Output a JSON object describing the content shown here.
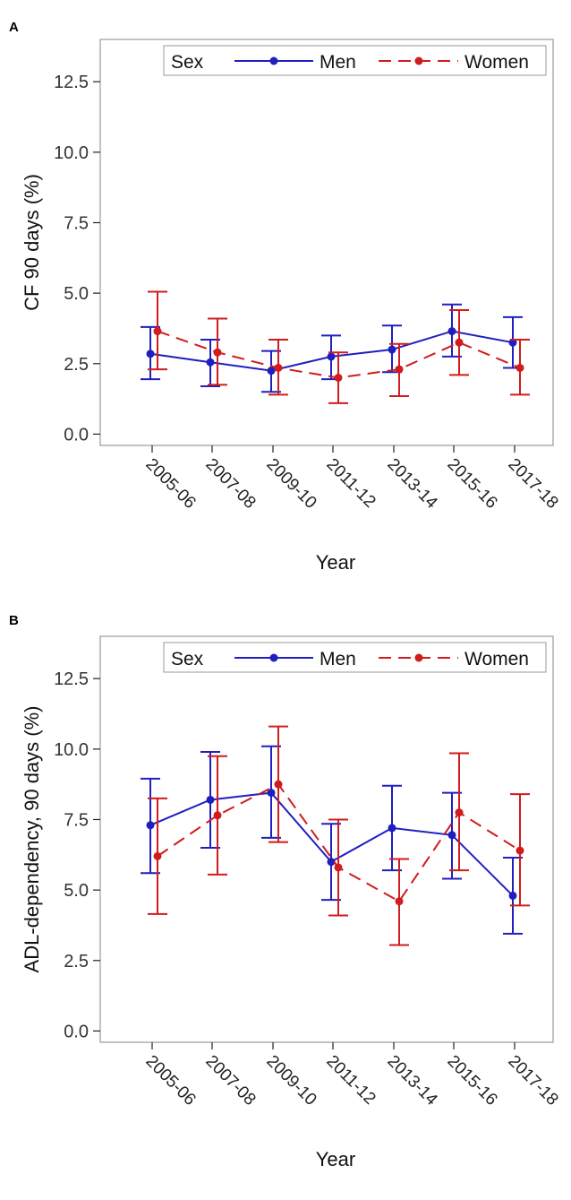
{
  "colors": {
    "men": "#1f1fbf",
    "women": "#d01c1c",
    "axis": "#222222",
    "frame": "#9a9a9a"
  },
  "chart_data": [
    {
      "panel_label": "A",
      "type": "line",
      "title": "",
      "xlabel": "Year",
      "ylabel": "CF 90 days (%)",
      "ylim": [
        -0.4,
        14
      ],
      "yticks": [
        0.0,
        2.5,
        5.0,
        7.5,
        10.0,
        12.5
      ],
      "ytick_labels": [
        "0.0",
        "2.5",
        "5.0",
        "7.5",
        "10.0",
        "12.5"
      ],
      "categories": [
        "2005-06",
        "2007-08",
        "2009-10",
        "2011-12",
        "2013-14",
        "2015-16",
        "2017-18"
      ],
      "legend": {
        "title": "Sex",
        "entries": [
          "Men",
          "Women"
        ],
        "placement": "top-right"
      },
      "series": [
        {
          "name": "Men",
          "style": "solid",
          "values": [
            2.85,
            2.55,
            2.25,
            2.75,
            3.0,
            3.65,
            3.25
          ],
          "lower": [
            1.95,
            1.7,
            1.5,
            1.95,
            2.2,
            2.75,
            2.35
          ],
          "upper": [
            3.8,
            3.35,
            2.95,
            3.5,
            3.85,
            4.6,
            4.15
          ]
        },
        {
          "name": "Women",
          "style": "dashed",
          "values": [
            3.65,
            2.9,
            2.35,
            2.0,
            2.3,
            3.25,
            2.35
          ],
          "lower": [
            2.3,
            1.75,
            1.4,
            1.1,
            1.35,
            2.1,
            1.4
          ],
          "upper": [
            5.05,
            4.1,
            3.35,
            2.9,
            3.2,
            4.4,
            3.35
          ]
        }
      ]
    },
    {
      "panel_label": "B",
      "type": "line",
      "title": "",
      "xlabel": "Year",
      "ylabel": "ADL-dependency, 90 days (%)",
      "ylim": [
        -0.4,
        14
      ],
      "yticks": [
        0.0,
        2.5,
        5.0,
        7.5,
        10.0,
        12.5
      ],
      "ytick_labels": [
        "0.0",
        "2.5",
        "5.0",
        "7.5",
        "10.0",
        "12.5"
      ],
      "categories": [
        "2005-06",
        "2007-08",
        "2009-10",
        "2011-12",
        "2013-14",
        "2015-16",
        "2017-18"
      ],
      "legend": {
        "title": "Sex",
        "entries": [
          "Men",
          "Women"
        ],
        "placement": "top-right"
      },
      "series": [
        {
          "name": "Men",
          "style": "solid",
          "values": [
            7.3,
            8.2,
            8.45,
            6.0,
            7.2,
            6.95,
            4.8
          ],
          "lower": [
            5.6,
            6.5,
            6.85,
            4.65,
            5.7,
            5.4,
            3.45
          ],
          "upper": [
            8.95,
            9.9,
            10.1,
            7.35,
            8.7,
            8.45,
            6.15
          ]
        },
        {
          "name": "Women",
          "style": "dashed",
          "values": [
            6.2,
            7.65,
            8.75,
            5.8,
            4.6,
            7.75,
            6.4
          ],
          "lower": [
            4.15,
            5.55,
            6.7,
            4.1,
            3.05,
            5.7,
            4.45
          ],
          "upper": [
            8.25,
            9.75,
            10.8,
            7.5,
            6.1,
            9.85,
            8.4
          ]
        }
      ]
    }
  ]
}
